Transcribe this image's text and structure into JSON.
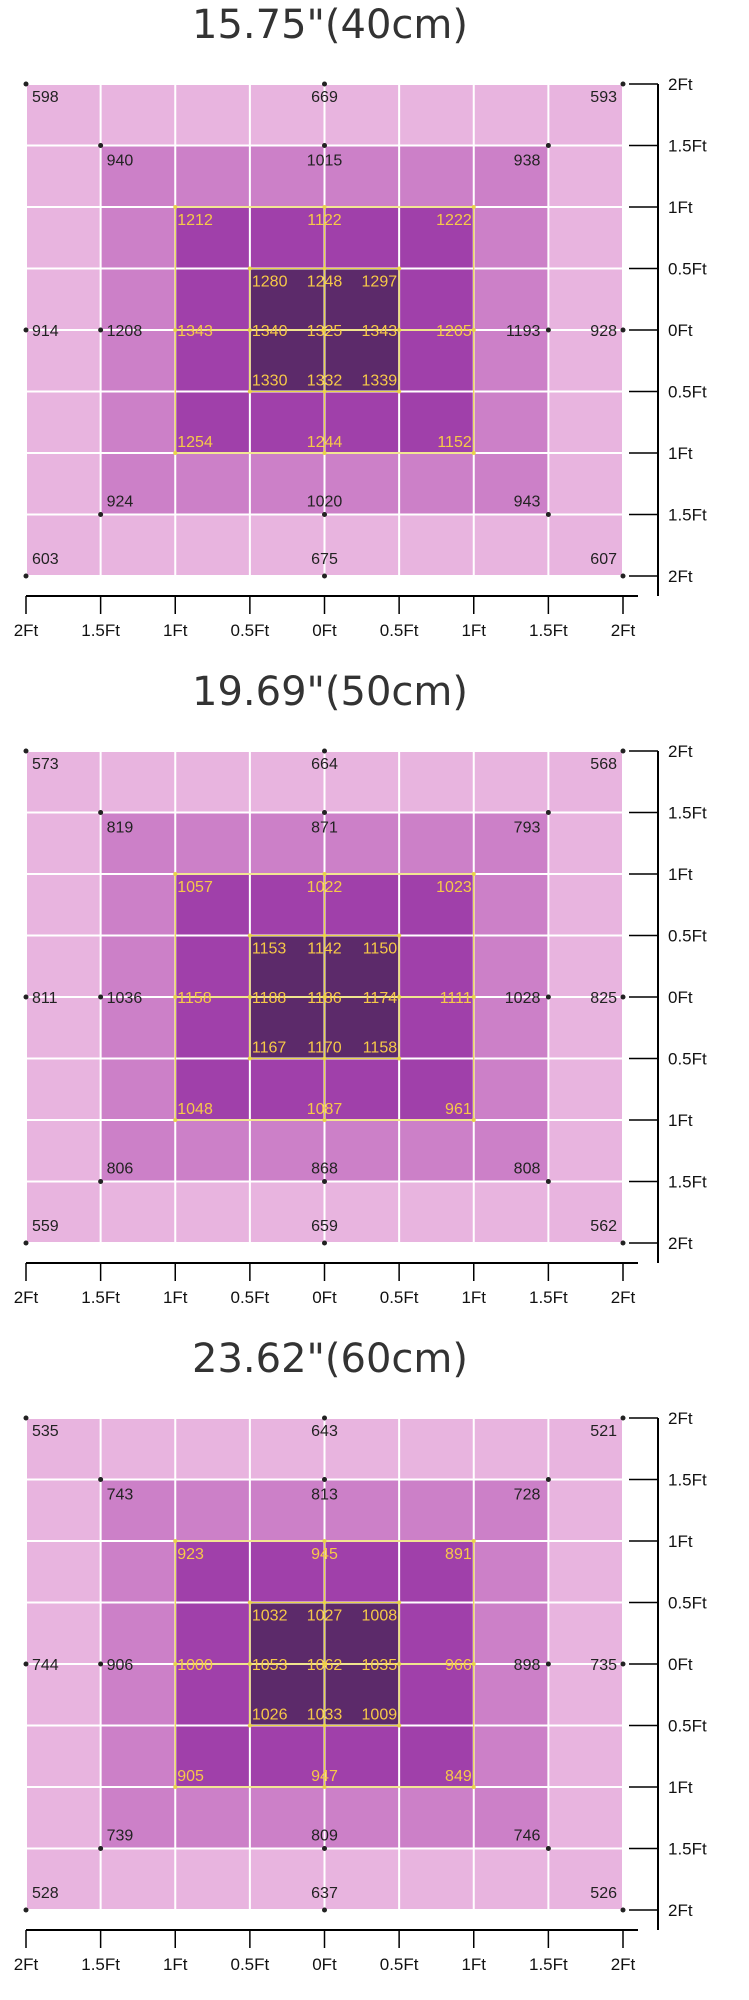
{
  "chart_data": [
    {
      "type": "heatmap",
      "title": "15.75\"(40cm)",
      "x_ticks": [
        "2Ft",
        "1.5Ft",
        "1Ft",
        "0.5Ft",
        "0Ft",
        "0.5Ft",
        "1Ft",
        "1.5Ft",
        "2Ft"
      ],
      "y_ticks": [
        "2Ft",
        "1.5Ft",
        "1Ft",
        "0.5Ft",
        "0Ft",
        "0.5Ft",
        "1Ft",
        "1.5Ft",
        "2Ft"
      ],
      "points": [
        {
          "x": -2,
          "y": 2,
          "value": 598
        },
        {
          "x": 0,
          "y": 2,
          "value": 669
        },
        {
          "x": 2,
          "y": 2,
          "value": 593
        },
        {
          "x": -1.5,
          "y": 1.5,
          "value": 940
        },
        {
          "x": 0,
          "y": 1.5,
          "value": 1015
        },
        {
          "x": 1.5,
          "y": 1.5,
          "value": 938
        },
        {
          "x": -1,
          "y": 1,
          "value": 1212
        },
        {
          "x": 0,
          "y": 1,
          "value": 1122
        },
        {
          "x": 1,
          "y": 1,
          "value": 1222
        },
        {
          "x": -0.5,
          "y": 0.5,
          "value": 1280
        },
        {
          "x": 0,
          "y": 0.5,
          "value": 1248
        },
        {
          "x": 0.5,
          "y": 0.5,
          "value": 1297
        },
        {
          "x": -2,
          "y": 0,
          "value": 914
        },
        {
          "x": -1.5,
          "y": 0,
          "value": 1208
        },
        {
          "x": -1,
          "y": 0,
          "value": 1343
        },
        {
          "x": -0.5,
          "y": 0,
          "value": 1340
        },
        {
          "x": 0,
          "y": 0,
          "value": 1325
        },
        {
          "x": 0.5,
          "y": 0,
          "value": 1343
        },
        {
          "x": 1,
          "y": 0,
          "value": 1205
        },
        {
          "x": 1.5,
          "y": 0,
          "value": 1193
        },
        {
          "x": 2,
          "y": 0,
          "value": 928
        },
        {
          "x": -0.5,
          "y": -0.5,
          "value": 1330
        },
        {
          "x": 0,
          "y": -0.5,
          "value": 1332
        },
        {
          "x": 0.5,
          "y": -0.5,
          "value": 1339
        },
        {
          "x": -1,
          "y": -1,
          "value": 1254
        },
        {
          "x": 0,
          "y": -1,
          "value": 1244
        },
        {
          "x": 1,
          "y": -1,
          "value": 1152
        },
        {
          "x": -1.5,
          "y": -1.5,
          "value": 924
        },
        {
          "x": 0,
          "y": -1.5,
          "value": 1020
        },
        {
          "x": 1.5,
          "y": -1.5,
          "value": 943
        },
        {
          "x": -2,
          "y": -2,
          "value": 603
        },
        {
          "x": 0,
          "y": -2,
          "value": 675
        },
        {
          "x": 2,
          "y": -2,
          "value": 607
        }
      ]
    },
    {
      "type": "heatmap",
      "title": "19.69\"(50cm)",
      "x_ticks": [
        "2Ft",
        "1.5Ft",
        "1Ft",
        "0.5Ft",
        "0Ft",
        "0.5Ft",
        "1Ft",
        "1.5Ft",
        "2Ft"
      ],
      "y_ticks": [
        "2Ft",
        "1.5Ft",
        "1Ft",
        "0.5Ft",
        "0Ft",
        "0.5Ft",
        "1Ft",
        "1.5Ft",
        "2Ft"
      ],
      "points": [
        {
          "x": -2,
          "y": 2,
          "value": 573
        },
        {
          "x": 0,
          "y": 2,
          "value": 664
        },
        {
          "x": 2,
          "y": 2,
          "value": 568
        },
        {
          "x": -1.5,
          "y": 1.5,
          "value": 819
        },
        {
          "x": 0,
          "y": 1.5,
          "value": 871
        },
        {
          "x": 1.5,
          "y": 1.5,
          "value": 793
        },
        {
          "x": -1,
          "y": 1,
          "value": 1057
        },
        {
          "x": 0,
          "y": 1,
          "value": 1022
        },
        {
          "x": 1,
          "y": 1,
          "value": 1023
        },
        {
          "x": -0.5,
          "y": 0.5,
          "value": 1153
        },
        {
          "x": 0,
          "y": 0.5,
          "value": 1142
        },
        {
          "x": 0.5,
          "y": 0.5,
          "value": 1150
        },
        {
          "x": -2,
          "y": 0,
          "value": 811
        },
        {
          "x": -1.5,
          "y": 0,
          "value": 1036
        },
        {
          "x": -1,
          "y": 0,
          "value": 1158
        },
        {
          "x": -0.5,
          "y": 0,
          "value": 1188
        },
        {
          "x": 0,
          "y": 0,
          "value": 1186
        },
        {
          "x": 0.5,
          "y": 0,
          "value": 1174
        },
        {
          "x": 1,
          "y": 0,
          "value": 1111
        },
        {
          "x": 1.5,
          "y": 0,
          "value": 1028
        },
        {
          "x": 2,
          "y": 0,
          "value": 825
        },
        {
          "x": -0.5,
          "y": -0.5,
          "value": 1167
        },
        {
          "x": 0,
          "y": -0.5,
          "value": 1170
        },
        {
          "x": 0.5,
          "y": -0.5,
          "value": 1158
        },
        {
          "x": -1,
          "y": -1,
          "value": 1048
        },
        {
          "x": 0,
          "y": -1,
          "value": 1087
        },
        {
          "x": 1,
          "y": -1,
          "value": 961
        },
        {
          "x": -1.5,
          "y": -1.5,
          "value": 806
        },
        {
          "x": 0,
          "y": -1.5,
          "value": 868
        },
        {
          "x": 1.5,
          "y": -1.5,
          "value": 808
        },
        {
          "x": -2,
          "y": -2,
          "value": 559
        },
        {
          "x": 0,
          "y": -2,
          "value": 659
        },
        {
          "x": 2,
          "y": -2,
          "value": 562
        }
      ]
    },
    {
      "type": "heatmap",
      "title": "23.62\"(60cm)",
      "x_ticks": [
        "2Ft",
        "1.5Ft",
        "1Ft",
        "0.5Ft",
        "0Ft",
        "0.5Ft",
        "1Ft",
        "1.5Ft",
        "2Ft"
      ],
      "y_ticks": [
        "2Ft",
        "1.5Ft",
        "1Ft",
        "0.5Ft",
        "0Ft",
        "0.5Ft",
        "1Ft",
        "1.5Ft",
        "2Ft"
      ],
      "points": [
        {
          "x": -2,
          "y": 2,
          "value": 535
        },
        {
          "x": 0,
          "y": 2,
          "value": 643
        },
        {
          "x": 2,
          "y": 2,
          "value": 521
        },
        {
          "x": -1.5,
          "y": 1.5,
          "value": 743
        },
        {
          "x": 0,
          "y": 1.5,
          "value": 813
        },
        {
          "x": 1.5,
          "y": 1.5,
          "value": 728
        },
        {
          "x": -1,
          "y": 1,
          "value": 923
        },
        {
          "x": 0,
          "y": 1,
          "value": 945
        },
        {
          "x": 1,
          "y": 1,
          "value": 891
        },
        {
          "x": -0.5,
          "y": 0.5,
          "value": 1032
        },
        {
          "x": 0,
          "y": 0.5,
          "value": 1027
        },
        {
          "x": 0.5,
          "y": 0.5,
          "value": 1008
        },
        {
          "x": -2,
          "y": 0,
          "value": 744
        },
        {
          "x": -1.5,
          "y": 0,
          "value": 906
        },
        {
          "x": -1,
          "y": 0,
          "value": 1000
        },
        {
          "x": -0.5,
          "y": 0,
          "value": 1053
        },
        {
          "x": 0,
          "y": 0,
          "value": 1062
        },
        {
          "x": 0.5,
          "y": 0,
          "value": 1035
        },
        {
          "x": 1,
          "y": 0,
          "value": 966
        },
        {
          "x": 1.5,
          "y": 0,
          "value": 898
        },
        {
          "x": 2,
          "y": 0,
          "value": 735
        },
        {
          "x": -0.5,
          "y": -0.5,
          "value": 1026
        },
        {
          "x": 0,
          "y": -0.5,
          "value": 1033
        },
        {
          "x": 0.5,
          "y": -0.5,
          "value": 1009
        },
        {
          "x": -1,
          "y": -1,
          "value": 905
        },
        {
          "x": 0,
          "y": -1,
          "value": 947
        },
        {
          "x": 1,
          "y": -1,
          "value": 849
        },
        {
          "x": -1.5,
          "y": -1.5,
          "value": 739
        },
        {
          "x": 0,
          "y": -1.5,
          "value": 809
        },
        {
          "x": 1.5,
          "y": -1.5,
          "value": 746
        },
        {
          "x": -2,
          "y": -2,
          "value": 528
        },
        {
          "x": 0,
          "y": -2,
          "value": 637
        },
        {
          "x": 2,
          "y": -2,
          "value": 526
        }
      ]
    }
  ],
  "colors": {
    "outer_ring": "#e8b4df",
    "second_ring": "#cc80c8",
    "third_ring": "#a040aa",
    "core": "#5c2a6a",
    "grid_line": "#ffffff",
    "inner_value_text": "#f7c948",
    "outer_value_text": "#222222",
    "inner_box_outline": "#e8d44a"
  }
}
